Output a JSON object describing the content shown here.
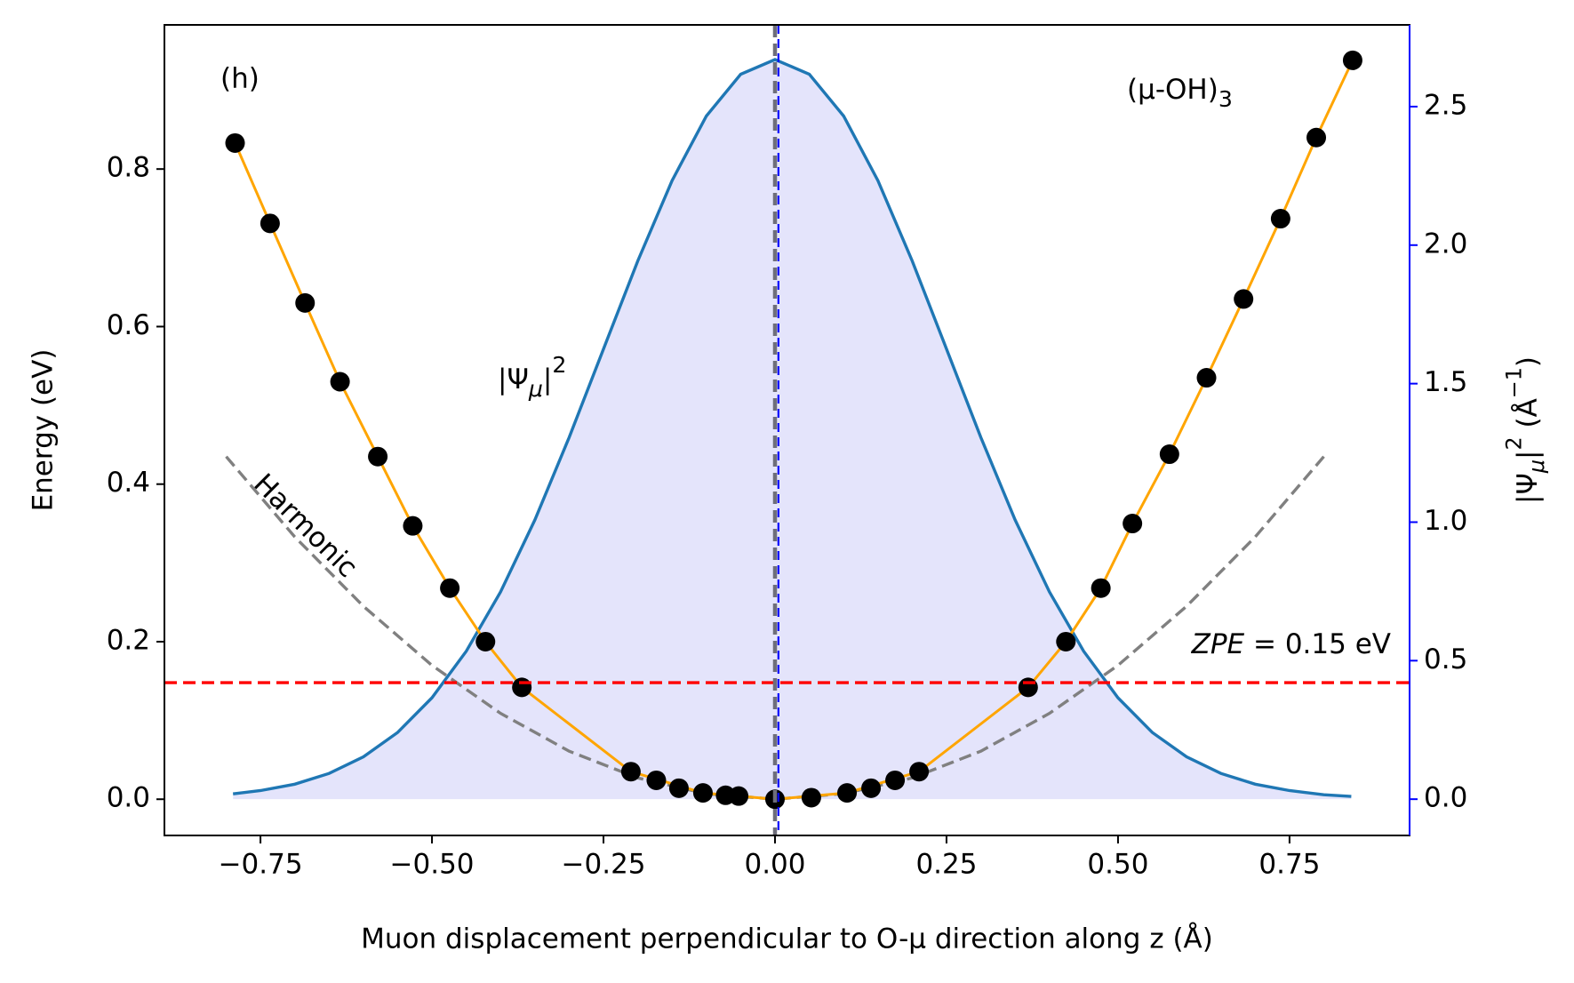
{
  "chart_data": {
    "type": "line",
    "xlabel": "Muon displacement perpendicular to O-μ direction along z (Å)",
    "ylabel": "Energy (eV)",
    "y2label": [
      "|Ψ",
      "μ",
      "|",
      "2",
      " (Å",
      "−1",
      ")"
    ],
    "panel_label": "(h)",
    "system_label": [
      "(μ-OH)",
      "3"
    ],
    "psi_label": [
      "|Ψ",
      "μ",
      "|",
      "2"
    ],
    "harmonic_label": "Harmonic",
    "zpe_label": [
      "ZPE",
      " = 0.15 eV"
    ],
    "xlim": [
      -0.89,
      0.925
    ],
    "ylim": [
      -0.046,
      0.983
    ],
    "y2lim": [
      -0.131,
      2.795
    ],
    "xticks": [
      {
        "value": -0.75,
        "label": "−0.75"
      },
      {
        "value": -0.5,
        "label": "−0.50"
      },
      {
        "value": -0.25,
        "label": "−0.25"
      },
      {
        "value": 0,
        "label": "0.00"
      },
      {
        "value": 0.25,
        "label": "0.25"
      },
      {
        "value": 0.5,
        "label": "0.50"
      },
      {
        "value": 0.75,
        "label": "0.75"
      }
    ],
    "yticks": [
      {
        "value": 0,
        "label": "0.0"
      },
      {
        "value": 0.2,
        "label": "0.2"
      },
      {
        "value": 0.4,
        "label": "0.4"
      },
      {
        "value": 0.6,
        "label": "0.6"
      },
      {
        "value": 0.8,
        "label": "0.8"
      }
    ],
    "y2ticks": [
      {
        "value": 0,
        "label": "0.0"
      },
      {
        "value": 0.5,
        "label": "0.5"
      },
      {
        "value": 1,
        "label": "1.0"
      },
      {
        "value": 1.5,
        "label": "1.5"
      },
      {
        "value": 2,
        "label": "2.0"
      },
      {
        "value": 2.5,
        "label": "2.5"
      }
    ],
    "y2color": "#0000ff",
    "zpe": 0.148,
    "zpe_color": "#ff0000",
    "vline_left": 0,
    "vline_left_color": "#6e6e7a",
    "vline_right": 0.005,
    "vline_right_color": "#0000ff",
    "series": [
      {
        "style": "area",
        "axis": "y2",
        "color": "#1f77b4",
        "fill": "#e4e4fb",
        "x": [
          -0.79,
          -0.75,
          -0.7,
          -0.65,
          -0.6,
          -0.55,
          -0.5,
          -0.45,
          -0.4,
          -0.35,
          -0.3,
          -0.25,
          -0.2,
          -0.15,
          -0.1,
          -0.05,
          0,
          0.05,
          0.1,
          0.15,
          0.2,
          0.25,
          0.3,
          0.35,
          0.4,
          0.45,
          0.5,
          0.55,
          0.6,
          0.65,
          0.7,
          0.75,
          0.8,
          0.84
        ],
        "values": [
          0.019,
          0.031,
          0.054,
          0.093,
          0.153,
          0.241,
          0.366,
          0.534,
          0.748,
          1.008,
          1.306,
          1.625,
          1.943,
          2.233,
          2.466,
          2.617,
          2.67,
          2.617,
          2.466,
          2.233,
          1.943,
          1.625,
          1.306,
          1.008,
          0.748,
          0.534,
          0.366,
          0.241,
          0.153,
          0.093,
          0.054,
          0.031,
          0.016,
          0.0098
        ]
      },
      {
        "style": "dashed",
        "color": "#808080",
        "x": [
          -0.8,
          -0.7,
          -0.6,
          -0.5,
          -0.4,
          -0.3,
          -0.2,
          -0.1,
          0,
          0.1,
          0.2,
          0.3,
          0.4,
          0.5,
          0.6,
          0.7,
          0.8
        ],
        "values": [
          0.435,
          0.333,
          0.245,
          0.17,
          0.109,
          0.061,
          0.027,
          0.007,
          0,
          0.007,
          0.027,
          0.061,
          0.109,
          0.17,
          0.245,
          0.333,
          0.435
        ]
      },
      {
        "style": "solid",
        "color": "#ffa500",
        "x": [
          -0.787,
          -0.736,
          -0.685,
          -0.634,
          -0.579,
          -0.528,
          -0.474,
          -0.422,
          -0.369,
          -0.21,
          -0.105,
          0,
          0.105,
          0.21,
          0.369,
          0.424,
          0.475,
          0.521,
          0.575,
          0.629,
          0.683,
          0.737,
          0.789,
          0.842
        ],
        "values": [
          0.833,
          0.731,
          0.63,
          0.53,
          0.435,
          0.347,
          0.268,
          0.2,
          0.142,
          0.035,
          0.008,
          0,
          0.008,
          0.035,
          0.142,
          0.2,
          0.268,
          0.35,
          0.438,
          0.535,
          0.635,
          0.737,
          0.84,
          0.938
        ]
      },
      {
        "style": "scatter",
        "color": "#000000",
        "x": [
          -0.787,
          -0.736,
          -0.685,
          -0.634,
          -0.579,
          -0.528,
          -0.474,
          -0.422,
          -0.369,
          -0.21,
          -0.173,
          -0.14,
          -0.105,
          -0.072,
          -0.053,
          0,
          0.053,
          0.105,
          0.14,
          0.175,
          0.21,
          0.369,
          0.424,
          0.475,
          0.521,
          0.575,
          0.629,
          0.683,
          0.737,
          0.789,
          0.842
        ],
        "values": [
          0.833,
          0.731,
          0.63,
          0.53,
          0.435,
          0.347,
          0.268,
          0.2,
          0.142,
          0.035,
          0.024,
          0.014,
          0.008,
          0.005,
          0.004,
          0,
          0.002,
          0.008,
          0.014,
          0.024,
          0.035,
          0.142,
          0.2,
          0.268,
          0.35,
          0.438,
          0.535,
          0.635,
          0.737,
          0.84,
          0.938
        ]
      }
    ]
  }
}
